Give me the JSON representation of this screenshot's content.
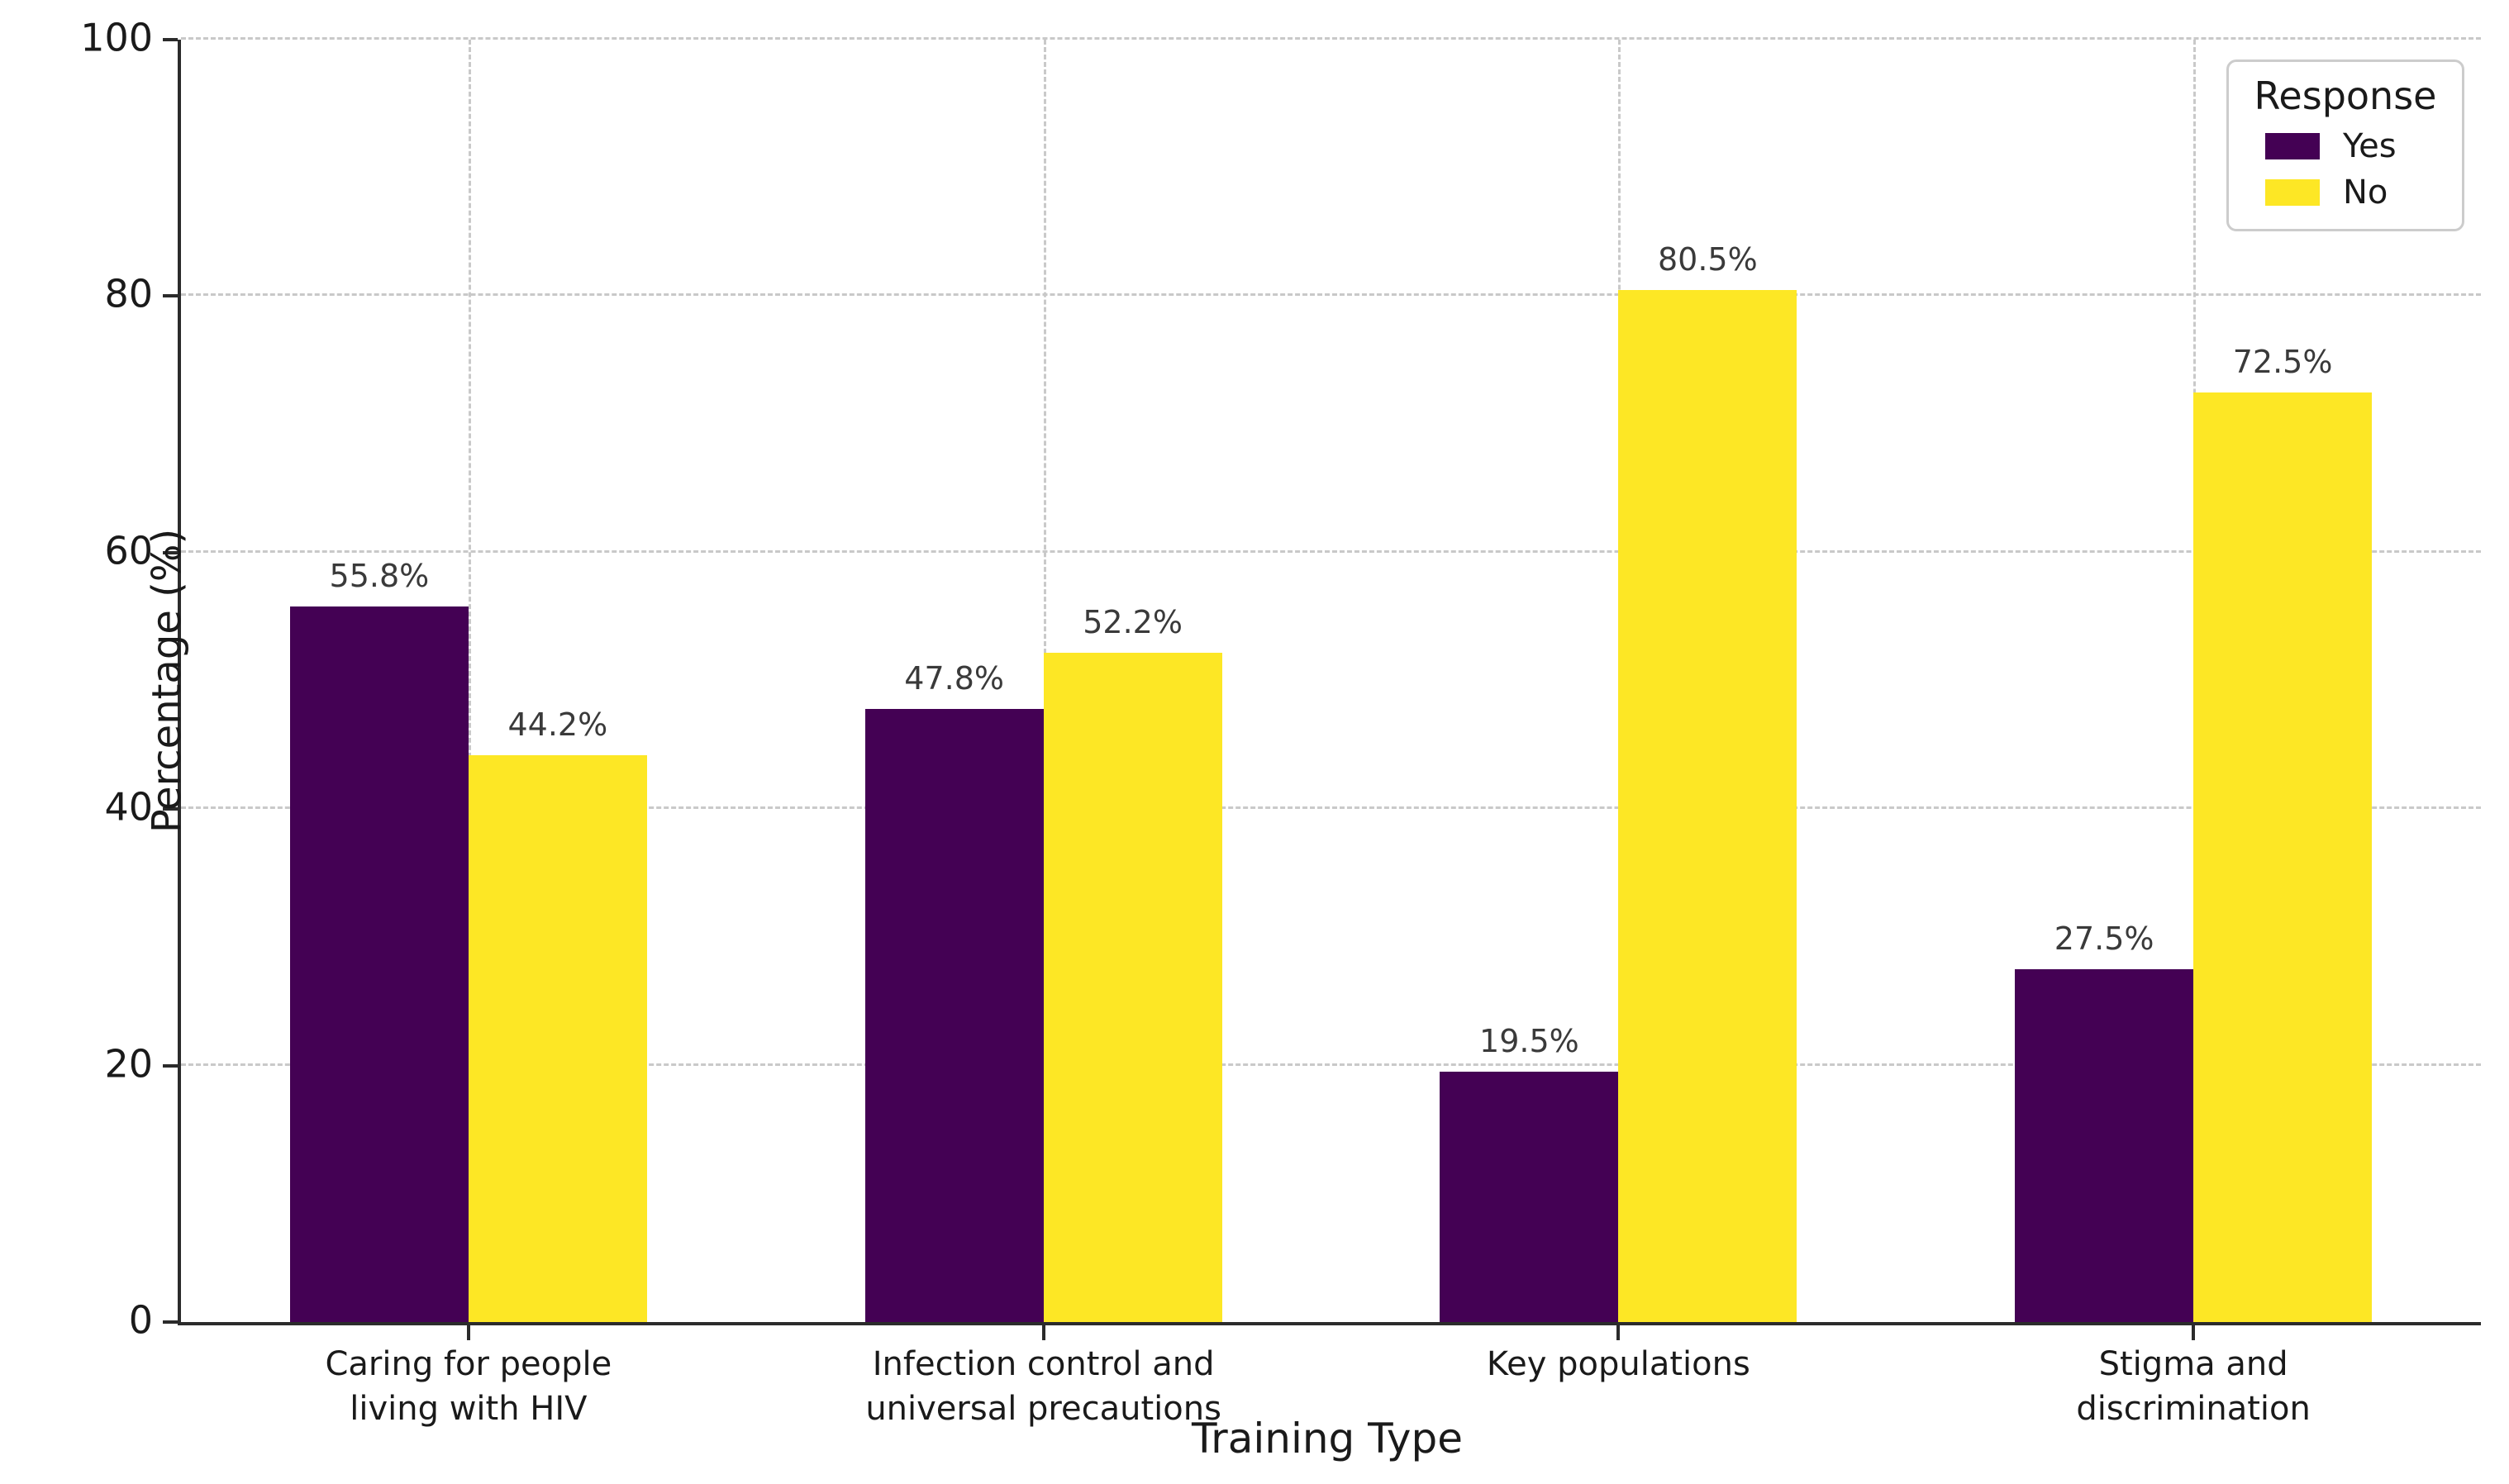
{
  "chart_data": {
    "type": "bar",
    "title": "",
    "xlabel": "Training Type",
    "ylabel": "Percentage (%)",
    "ylim": [
      0,
      100
    ],
    "yticks": [
      0,
      20,
      40,
      60,
      80,
      100
    ],
    "grid": "dashed horizontal gridlines at y ticks and dashed vertical gridlines at category centers",
    "legend": {
      "title": "Response",
      "position": "upper right"
    },
    "categories": [
      "Caring for people\nliving with HIV",
      "Infection control and\nuniversal precautions",
      "Key populations",
      "Stigma and\ndiscrimination"
    ],
    "series": [
      {
        "name": "Yes",
        "color": "#440154",
        "values": [
          55.8,
          47.8,
          19.5,
          27.5
        ]
      },
      {
        "name": "No",
        "color": "#FDE725",
        "values": [
          44.2,
          52.2,
          80.5,
          72.5
        ]
      }
    ],
    "value_labels": [
      [
        "55.8%",
        "47.8%",
        "19.5%",
        "27.5%"
      ],
      [
        "44.2%",
        "52.2%",
        "80.5%",
        "72.5%"
      ]
    ]
  },
  "colors": {
    "background": "#ffffff",
    "spine": "#2b2b2b",
    "gridline": "#c9c9c9",
    "text": "#1a1a1a",
    "bar_yes": "#440154",
    "bar_no": "#FDE725"
  }
}
